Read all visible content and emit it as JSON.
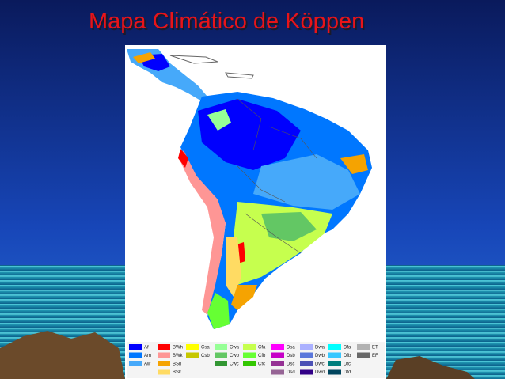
{
  "title": "Mapa Climático de Köppen",
  "legend": {
    "columns": [
      [
        {
          "code": "Af",
          "color": "#0000fe"
        },
        {
          "code": "Am",
          "color": "#0077ff"
        },
        {
          "code": "Aw",
          "color": "#46a9fa"
        }
      ],
      [
        {
          "code": "BWh",
          "color": "#fe0000"
        },
        {
          "code": "BWk",
          "color": "#fe9695"
        },
        {
          "code": "BSh",
          "color": "#f5a301"
        },
        {
          "code": "BSk",
          "color": "#ffdb63"
        }
      ],
      [
        {
          "code": "Csa",
          "color": "#ffff00"
        },
        {
          "code": "Csb",
          "color": "#c6c700"
        }
      ],
      [
        {
          "code": "Cwa",
          "color": "#96ff96"
        },
        {
          "code": "Cwb",
          "color": "#63c764"
        },
        {
          "code": "Cwc",
          "color": "#329633"
        }
      ],
      [
        {
          "code": "Cfa",
          "color": "#c6ff4e"
        },
        {
          "code": "Cfb",
          "color": "#66ff33"
        },
        {
          "code": "Cfc",
          "color": "#33c701"
        }
      ],
      [
        {
          "code": "Dsa",
          "color": "#ff00fe"
        },
        {
          "code": "Dsb",
          "color": "#c600c7"
        },
        {
          "code": "Dsc",
          "color": "#963295"
        },
        {
          "code": "Dsd",
          "color": "#966495"
        }
      ],
      [
        {
          "code": "Dwa",
          "color": "#abb1ff"
        },
        {
          "code": "Dwb",
          "color": "#5a77db"
        },
        {
          "code": "Dwc",
          "color": "#4c51b5"
        },
        {
          "code": "Dwd",
          "color": "#320087"
        }
      ],
      [
        {
          "code": "Dfa",
          "color": "#00ffff"
        },
        {
          "code": "Dfb",
          "color": "#38c7ff"
        },
        {
          "code": "Dfc",
          "color": "#007e7d"
        },
        {
          "code": "Dfd",
          "color": "#00455e"
        }
      ],
      [
        {
          "code": "ET",
          "color": "#b2b2b2"
        },
        {
          "code": "EF",
          "color": "#686868"
        }
      ]
    ]
  }
}
